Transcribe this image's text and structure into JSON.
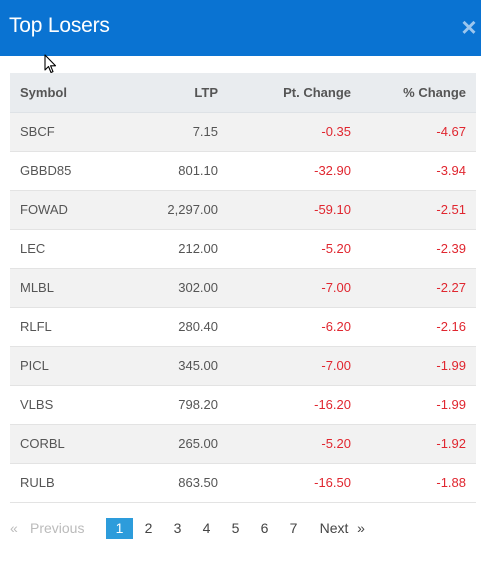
{
  "modal": {
    "title": "Top Losers",
    "close_label": "×"
  },
  "table": {
    "headers": {
      "symbol": "Symbol",
      "ltp": "LTP",
      "pt_change": "Pt. Change",
      "pct_change": "% Change"
    },
    "rows": [
      {
        "symbol": "SBCF",
        "ltp": "7.15",
        "pt_change": "-0.35",
        "pct_change": "-4.67"
      },
      {
        "symbol": "GBBD85",
        "ltp": "801.10",
        "pt_change": "-32.90",
        "pct_change": "-3.94"
      },
      {
        "symbol": "FOWAD",
        "ltp": "2,297.00",
        "pt_change": "-59.10",
        "pct_change": "-2.51"
      },
      {
        "symbol": "LEC",
        "ltp": "212.00",
        "pt_change": "-5.20",
        "pct_change": "-2.39"
      },
      {
        "symbol": "MLBL",
        "ltp": "302.00",
        "pt_change": "-7.00",
        "pct_change": "-2.27"
      },
      {
        "symbol": "RLFL",
        "ltp": "280.40",
        "pt_change": "-6.20",
        "pct_change": "-2.16"
      },
      {
        "symbol": "PICL",
        "ltp": "345.00",
        "pt_change": "-7.00",
        "pct_change": "-1.99"
      },
      {
        "symbol": "VLBS",
        "ltp": "798.20",
        "pt_change": "-16.20",
        "pct_change": "-1.99"
      },
      {
        "symbol": "CORBL",
        "ltp": "265.00",
        "pt_change": "-5.20",
        "pct_change": "-1.92"
      },
      {
        "symbol": "RULB",
        "ltp": "863.50",
        "pt_change": "-16.50",
        "pct_change": "-1.88"
      }
    ]
  },
  "pagination": {
    "prev_arrow": "«",
    "prev_label": "Previous",
    "pages": [
      "1",
      "2",
      "3",
      "4",
      "5",
      "6",
      "7"
    ],
    "current_page": "1",
    "next_label": "Next",
    "next_arrow": "»"
  },
  "colors": {
    "header_bg": "#0a73d2",
    "negative": "#e0262f",
    "active_page": "#2d9cdb"
  }
}
